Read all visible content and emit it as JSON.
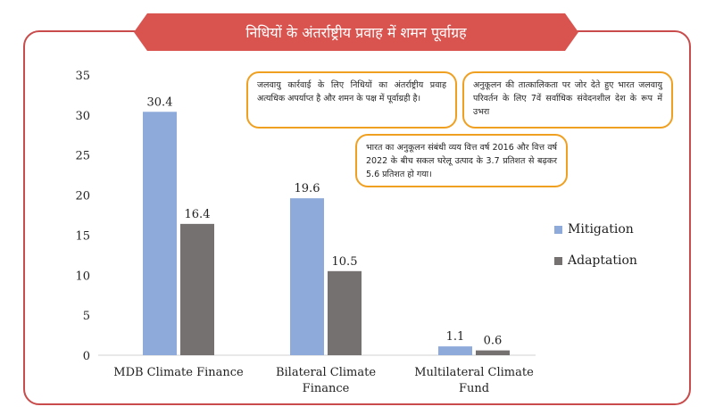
{
  "title": "निधियों के अंतर्राष्ट्रीय प्रवाह में शमन पूर्वाग्रह",
  "notes": [
    {
      "text": "जलवायु कार्रवाई के लिए निधियों का अंतर्राष्ट्रीय प्रवाह अत्यधिक अपर्याप्त है और शमन के पक्ष में पूर्वाग्रही है।"
    },
    {
      "text": "अनुकूलन की तात्कालिकता पर जोर देते हुए भारत जलवायु परिवर्तन के लिए 7वें सर्वाधिक संवेदनशील देश के रूप में उभरा"
    },
    {
      "text": "भारत का अनुकूलन संबंधी व्यय वित्त वर्ष 2016 और वित्त वर्ष 2022 के बीच सकल घरेलू उत्पाद के 3.7 प्रतिशत से बढ़कर 5.6 प्रतिशत हो गया।"
    }
  ],
  "chart_data": {
    "type": "bar",
    "categories": [
      [
        "MDB Climate Finance"
      ],
      [
        "Bilateral Climate",
        "Finance"
      ],
      [
        "Multilateral Climate",
        "Fund"
      ]
    ],
    "series": [
      {
        "name": "Mitigation",
        "values": [
          30.4,
          19.6,
          1.1
        ],
        "color": "#8eaadb"
      },
      {
        "name": "Adaptation",
        "values": [
          16.4,
          10.5,
          0.6
        ],
        "color": "#767171"
      }
    ],
    "data_labels": [
      [
        "30.4",
        "19.6",
        "1.1"
      ],
      [
        "16.4",
        "10.5",
        "0.6"
      ]
    ],
    "ylim": [
      0,
      35
    ],
    "yticks": [
      0,
      5,
      10,
      15,
      20,
      25,
      30,
      35
    ],
    "legend_position": "right",
    "grid": false
  }
}
